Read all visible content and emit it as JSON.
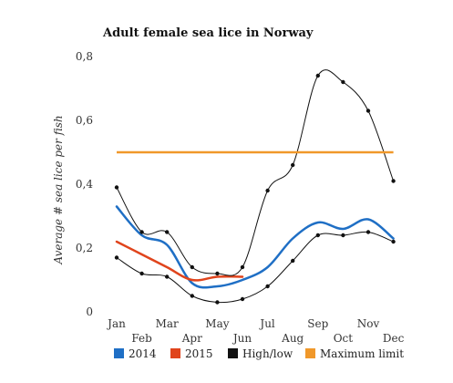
{
  "chart_data": {
    "type": "line",
    "title": "Adult female sea lice in Norway",
    "xlabel": "",
    "ylabel": "Average # sea lice per fish",
    "categories": [
      "Jan",
      "Feb",
      "Mar",
      "Apr",
      "May",
      "Jun",
      "Jul",
      "Aug",
      "Sep",
      "Oct",
      "Nov",
      "Dec"
    ],
    "ylim": [
      0,
      0.8
    ],
    "yticks": [
      0,
      0.2,
      0.4,
      0.6,
      0.8
    ],
    "ytick_labels": [
      "0",
      "0,2",
      "0,4",
      "0,6",
      "0,8"
    ],
    "grid": false,
    "legend_position": "bottom",
    "series": [
      {
        "name": "2014",
        "color": "#1f6fc5",
        "values": [
          0.33,
          0.24,
          0.21,
          0.09,
          0.08,
          0.1,
          0.14,
          0.23,
          0.28,
          0.26,
          0.29,
          0.23
        ]
      },
      {
        "name": "2015",
        "color": "#e0441c",
        "values": [
          0.22,
          0.18,
          0.14,
          0.1,
          0.11,
          0.11,
          null,
          null,
          null,
          null,
          null,
          null
        ]
      },
      {
        "name": "High",
        "legend": false,
        "color": "#111111",
        "values": [
          0.39,
          0.25,
          0.25,
          0.14,
          0.12,
          0.14,
          0.38,
          0.46,
          0.74,
          0.72,
          0.63,
          0.41
        ]
      },
      {
        "name": "Low",
        "legend": false,
        "color": "#111111",
        "values": [
          0.17,
          0.12,
          0.11,
          0.05,
          0.03,
          0.04,
          0.08,
          0.16,
          0.24,
          0.24,
          0.25,
          0.22
        ]
      },
      {
        "name": "Maximum limit",
        "legend": false,
        "color": "#f0982a",
        "values": [
          0.5,
          0.5,
          0.5,
          0.5,
          0.5,
          0.5,
          0.5,
          0.5,
          0.5,
          0.5,
          0.5,
          0.5
        ]
      }
    ],
    "legend": [
      {
        "label": "2014",
        "color": "#1f6fc5"
      },
      {
        "label": "2015",
        "color": "#e0441c"
      },
      {
        "label": "High/low",
        "color": "#111111"
      },
      {
        "label": "Maximum limit",
        "color": "#f0982a"
      }
    ]
  }
}
